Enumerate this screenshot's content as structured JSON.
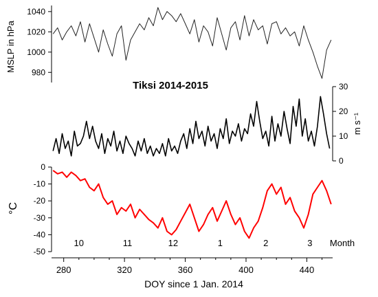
{
  "chart_data": {
    "type": "line",
    "title": "Tiksi 2014-2015",
    "xlabel": "DOY since 1 Jan. 2014",
    "xlim": [
      272,
      457
    ],
    "x_ticks": [
      280,
      320,
      360,
      400,
      440
    ],
    "month_axis_label": "Month",
    "month_labels": [
      {
        "label": "10",
        "doy": 290
      },
      {
        "label": "11",
        "doy": 322
      },
      {
        "label": "12",
        "doy": 352
      },
      {
        "label": "1",
        "doy": 383
      },
      {
        "label": "2",
        "doy": 413
      },
      {
        "label": "3",
        "doy": 442
      }
    ],
    "panels": [
      {
        "id": "mslp",
        "ylabel": "MSLP in hPa",
        "ylim": [
          970,
          1046
        ],
        "y_ticks": [
          980,
          1000,
          1020,
          1040
        ],
        "axis_side": "left",
        "color": "#222222",
        "series": [
          {
            "x": [
              273,
              276,
              279,
              282,
              285,
              288,
              291,
              294,
              297,
              300,
              303,
              306,
              309,
              312,
              315,
              318,
              321,
              324,
              327,
              330,
              333,
              336,
              339,
              342,
              345,
              348,
              351,
              354,
              357,
              360,
              363,
              366,
              369,
              372,
              375,
              378,
              381,
              384,
              387,
              390,
              393,
              396,
              399,
              402,
              405,
              408,
              411,
              414,
              417,
              420,
              423,
              426,
              429,
              432,
              435,
              438,
              441,
              444,
              447,
              450,
              453,
              456
            ],
            "y": [
              1018,
              1024,
              1012,
              1020,
              1026,
              1016,
              1030,
              1010,
              1028,
              1014,
              1000,
              1022,
              1008,
              996,
              1018,
              1026,
              992,
              1012,
              1020,
              1028,
              1022,
              1034,
              1026,
              1044,
              1032,
              1040,
              1036,
              1030,
              1038,
              1028,
              1018,
              1032,
              1010,
              1026,
              1020,
              1006,
              1034,
              1018,
              1002,
              1024,
              1030,
              1012,
              1036,
              1016,
              1032,
              1022,
              1026,
              1008,
              1028,
              1030,
              1018,
              1024,
              1016,
              1020,
              1006,
              1026,
              1012,
              1000,
              986,
              974,
              1002,
              1012
            ]
          }
        ]
      },
      {
        "id": "wind",
        "ylabel": "m s⁻¹",
        "ylim": [
          0,
          30
        ],
        "y_ticks": [
          0,
          10,
          20,
          30
        ],
        "axis_side": "right",
        "color": "#000000",
        "series": [
          {
            "x": [
              273,
              275,
              277,
              279,
              281,
              283,
              285,
              287,
              289,
              291,
              293,
              295,
              297,
              299,
              301,
              303,
              305,
              307,
              309,
              311,
              313,
              315,
              317,
              319,
              321,
              323,
              325,
              327,
              329,
              331,
              333,
              335,
              337,
              339,
              341,
              343,
              345,
              347,
              349,
              351,
              353,
              355,
              357,
              359,
              361,
              363,
              365,
              367,
              369,
              371,
              373,
              375,
              377,
              379,
              381,
              383,
              385,
              387,
              389,
              391,
              393,
              395,
              397,
              399,
              401,
              403,
              405,
              407,
              409,
              411,
              413,
              415,
              417,
              419,
              421,
              423,
              425,
              427,
              429,
              431,
              433,
              435,
              437,
              439,
              441,
              443,
              445,
              447,
              449,
              451,
              453,
              455
            ],
            "y": [
              4,
              9,
              3,
              11,
              5,
              8,
              2,
              12,
              6,
              7,
              10,
              16,
              9,
              14,
              8,
              5,
              11,
              3,
              9,
              6,
              12,
              4,
              8,
              3,
              10,
              7,
              5,
              2,
              8,
              4,
              9,
              3,
              6,
              2,
              5,
              3,
              7,
              2,
              9,
              4,
              6,
              3,
              8,
              11,
              5,
              13,
              7,
              16,
              9,
              12,
              6,
              14,
              8,
              11,
              5,
              13,
              9,
              17,
              7,
              12,
              10,
              15,
              8,
              13,
              11,
              19,
              14,
              24,
              16,
              9,
              12,
              6,
              18,
              8,
              15,
              10,
              20,
              13,
              7,
              22,
              14,
              25,
              10,
              17,
              8,
              12,
              6,
              14,
              26,
              19,
              11,
              5
            ]
          }
        ]
      },
      {
        "id": "temp",
        "ylabel": "°C",
        "ylim": [
          -50,
          0
        ],
        "y_ticks": [
          0,
          -10,
          -20,
          -30,
          -40,
          -50
        ],
        "axis_side": "left",
        "color": "#ff0000",
        "series": [
          {
            "x": [
              273,
              276,
              279,
              282,
              285,
              288,
              291,
              294,
              297,
              300,
              303,
              306,
              309,
              312,
              315,
              318,
              321,
              324,
              327,
              330,
              333,
              336,
              339,
              342,
              345,
              348,
              351,
              354,
              357,
              360,
              363,
              366,
              369,
              372,
              375,
              378,
              381,
              384,
              387,
              390,
              393,
              396,
              399,
              402,
              405,
              408,
              411,
              414,
              417,
              420,
              423,
              426,
              429,
              432,
              435,
              438,
              441,
              444,
              447,
              450,
              453,
              456
            ],
            "y": [
              -2,
              -4,
              -3,
              -6,
              -3,
              -5,
              -8,
              -7,
              -12,
              -14,
              -10,
              -18,
              -22,
              -20,
              -28,
              -24,
              -26,
              -22,
              -30,
              -25,
              -28,
              -31,
              -33,
              -36,
              -30,
              -38,
              -40,
              -37,
              -32,
              -27,
              -22,
              -30,
              -38,
              -34,
              -28,
              -24,
              -32,
              -26,
              -20,
              -28,
              -34,
              -30,
              -38,
              -42,
              -36,
              -32,
              -24,
              -14,
              -10,
              -16,
              -12,
              -22,
              -18,
              -26,
              -30,
              -36,
              -28,
              -16,
              -12,
              -8,
              -14,
              -22
            ]
          }
        ]
      }
    ]
  }
}
